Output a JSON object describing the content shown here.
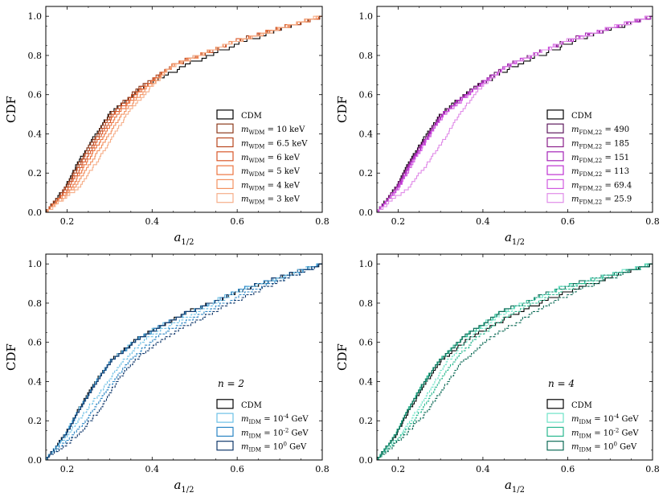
{
  "chart_data": [
    {
      "type": "line",
      "title": "",
      "xlabel": "a_1/2",
      "ylabel": "CDF",
      "xlim": [
        0.15,
        0.8
      ],
      "ylim": [
        0.0,
        1.05
      ],
      "xticks": [
        "0.2",
        "0.4",
        "0.6",
        "0.8"
      ],
      "yticks": [
        "0.0",
        "0.2",
        "0.4",
        "0.6",
        "0.8",
        "1.0"
      ],
      "legend_position": "lower-right",
      "annotation": "",
      "series": [
        {
          "name": "CDM",
          "color": "#000000",
          "dash": false,
          "q": [
            0.15,
            0.195,
            0.225,
            0.26,
            0.3,
            0.37,
            0.48,
            0.62,
            0.8
          ]
        },
        {
          "name": "m_WDM = 10 keV",
          "color": "#8c3a1c",
          "dash": false,
          "q": [
            0.15,
            0.197,
            0.228,
            0.263,
            0.302,
            0.365,
            0.45,
            0.6,
            0.8
          ]
        },
        {
          "name": "m_WDM = 6.5 keV",
          "color": "#b8471f",
          "dash": false,
          "q": [
            0.15,
            0.2,
            0.232,
            0.268,
            0.307,
            0.368,
            0.45,
            0.6,
            0.8
          ]
        },
        {
          "name": "m_WDM = 6 keV",
          "color": "#d9582a",
          "dash": false,
          "q": [
            0.15,
            0.205,
            0.238,
            0.274,
            0.312,
            0.372,
            0.45,
            0.6,
            0.8
          ]
        },
        {
          "name": "m_WDM = 5 keV",
          "color": "#ec7440",
          "dash": false,
          "q": [
            0.15,
            0.21,
            0.245,
            0.282,
            0.32,
            0.377,
            0.45,
            0.6,
            0.8
          ]
        },
        {
          "name": "m_WDM = 4 keV",
          "color": "#f39160",
          "dash": false,
          "q": [
            0.15,
            0.218,
            0.255,
            0.292,
            0.33,
            0.384,
            0.45,
            0.6,
            0.8
          ]
        },
        {
          "name": "m_WDM = 3 keV",
          "color": "#f6ae88",
          "dash": false,
          "q": [
            0.15,
            0.228,
            0.268,
            0.305,
            0.342,
            0.392,
            0.45,
            0.6,
            0.8
          ]
        }
      ]
    },
    {
      "type": "line",
      "title": "",
      "xlabel": "a_1/2",
      "ylabel": "CDF",
      "xlim": [
        0.15,
        0.8
      ],
      "ylim": [
        0.0,
        1.05
      ],
      "xticks": [
        "0.2",
        "0.4",
        "0.6",
        "0.8"
      ],
      "yticks": [
        "0.0",
        "0.2",
        "0.4",
        "0.6",
        "0.8",
        "1.0"
      ],
      "legend_position": "lower-right",
      "annotation": "",
      "series": [
        {
          "name": "CDM",
          "color": "#000000",
          "dash": false,
          "q": [
            0.15,
            0.195,
            0.225,
            0.26,
            0.3,
            0.37,
            0.48,
            0.62,
            0.8
          ]
        },
        {
          "name": "m_FDM,22 = 490",
          "color": "#5e1a5e",
          "dash": false,
          "q": [
            0.15,
            0.195,
            0.226,
            0.262,
            0.302,
            0.372,
            0.46,
            0.6,
            0.8
          ]
        },
        {
          "name": "m_FDM,22 = 185",
          "color": "#8a1f8a",
          "dash": false,
          "q": [
            0.15,
            0.197,
            0.228,
            0.264,
            0.304,
            0.374,
            0.46,
            0.6,
            0.8
          ]
        },
        {
          "name": "m_FDM,22 = 151",
          "color": "#a524b8",
          "dash": false,
          "q": [
            0.15,
            0.199,
            0.23,
            0.266,
            0.306,
            0.376,
            0.46,
            0.6,
            0.8
          ]
        },
        {
          "name": "m_FDM,22 = 113",
          "color": "#bf32d2",
          "dash": false,
          "q": [
            0.15,
            0.201,
            0.232,
            0.268,
            0.308,
            0.378,
            0.46,
            0.6,
            0.8
          ]
        },
        {
          "name": "m_FDM,22 = 69.4",
          "color": "#d05ae0",
          "dash": false,
          "q": [
            0.15,
            0.203,
            0.234,
            0.27,
            0.31,
            0.38,
            0.46,
            0.6,
            0.8
          ]
        },
        {
          "name": "m_FDM,22 = 25.9",
          "color": "#e08ce8",
          "dash": false,
          "q": [
            0.15,
            0.225,
            0.27,
            0.31,
            0.345,
            0.39,
            0.46,
            0.6,
            0.8
          ]
        }
      ]
    },
    {
      "type": "line",
      "title": "",
      "xlabel": "a_1/2",
      "ylabel": "CDF",
      "xlim": [
        0.15,
        0.8
      ],
      "ylim": [
        0.0,
        1.05
      ],
      "xticks": [
        "0.2",
        "0.4",
        "0.6",
        "0.8"
      ],
      "yticks": [
        "0.0",
        "0.2",
        "0.4",
        "0.6",
        "0.8",
        "1.0"
      ],
      "legend_position": "lower-right",
      "annotation": "n = 2",
      "series": [
        {
          "name": "CDM",
          "color": "#000000",
          "dash": false,
          "q": [
            0.15,
            0.195,
            0.225,
            0.26,
            0.3,
            0.37,
            0.48,
            0.62,
            0.8
          ]
        },
        {
          "name": "m_IDM = 10^-4 GeV",
          "color": "#6cc0e6",
          "dash": false,
          "q": [
            0.15,
            0.195,
            0.226,
            0.261,
            0.301,
            0.37,
            0.48,
            0.62,
            0.8
          ]
        },
        {
          "name": "m_IDM = 10^-2 GeV",
          "color": "#2c86c4",
          "dash": false,
          "q": [
            0.15,
            0.196,
            0.227,
            0.262,
            0.302,
            0.371,
            0.48,
            0.62,
            0.8
          ]
        },
        {
          "name": "m_IDM = 10^0 GeV",
          "color": "#10386b",
          "dash": false,
          "q": [
            0.15,
            0.196,
            0.228,
            0.263,
            0.303,
            0.372,
            0.48,
            0.62,
            0.8
          ]
        },
        {
          "name": "",
          "color": "#6cc0e6",
          "dash": true,
          "q": [
            0.15,
            0.2,
            0.245,
            0.288,
            0.33,
            0.39,
            0.5,
            0.62,
            0.8
          ]
        },
        {
          "name": "",
          "color": "#2c86c4",
          "dash": true,
          "q": [
            0.15,
            0.215,
            0.262,
            0.3,
            0.345,
            0.41,
            0.52,
            0.65,
            0.8
          ]
        },
        {
          "name": "",
          "color": "#10386b",
          "dash": true,
          "q": [
            0.15,
            0.225,
            0.275,
            0.31,
            0.355,
            0.43,
            0.54,
            0.66,
            0.8
          ]
        }
      ]
    },
    {
      "type": "line",
      "title": "",
      "xlabel": "a_1/2",
      "ylabel": "CDF",
      "xlim": [
        0.15,
        0.8
      ],
      "ylim": [
        0.0,
        1.05
      ],
      "xticks": [
        "0.2",
        "0.4",
        "0.6",
        "0.8"
      ],
      "yticks": [
        "0.0",
        "0.2",
        "0.4",
        "0.6",
        "0.8",
        "1.0"
      ],
      "legend_position": "lower-right",
      "annotation": "n = 4",
      "series": [
        {
          "name": "CDM",
          "color": "#000000",
          "dash": false,
          "q": [
            0.15,
            0.195,
            0.225,
            0.26,
            0.3,
            0.37,
            0.48,
            0.62,
            0.8
          ]
        },
        {
          "name": "m_IDM = 10^-4 GeV",
          "color": "#6fe3c7",
          "dash": false,
          "q": [
            0.15,
            0.193,
            0.222,
            0.256,
            0.295,
            0.355,
            0.44,
            0.58,
            0.8
          ]
        },
        {
          "name": "m_IDM = 10^-2 GeV",
          "color": "#2bb890",
          "dash": false,
          "q": [
            0.15,
            0.193,
            0.222,
            0.255,
            0.294,
            0.354,
            0.44,
            0.58,
            0.8
          ]
        },
        {
          "name": "m_IDM = 10^0 GeV",
          "color": "#0e6b57",
          "dash": false,
          "q": [
            0.15,
            0.194,
            0.223,
            0.256,
            0.295,
            0.355,
            0.44,
            0.58,
            0.8
          ]
        },
        {
          "name": "",
          "color": "#6fe3c7",
          "dash": true,
          "q": [
            0.15,
            0.205,
            0.245,
            0.28,
            0.315,
            0.37,
            0.45,
            0.58,
            0.8
          ]
        },
        {
          "name": "",
          "color": "#2bb890",
          "dash": true,
          "q": [
            0.15,
            0.21,
            0.255,
            0.29,
            0.33,
            0.385,
            0.47,
            0.6,
            0.8
          ]
        },
        {
          "name": "",
          "color": "#0e6b57",
          "dash": true,
          "q": [
            0.15,
            0.215,
            0.27,
            0.31,
            0.35,
            0.42,
            0.52,
            0.63,
            0.8
          ]
        }
      ]
    }
  ]
}
